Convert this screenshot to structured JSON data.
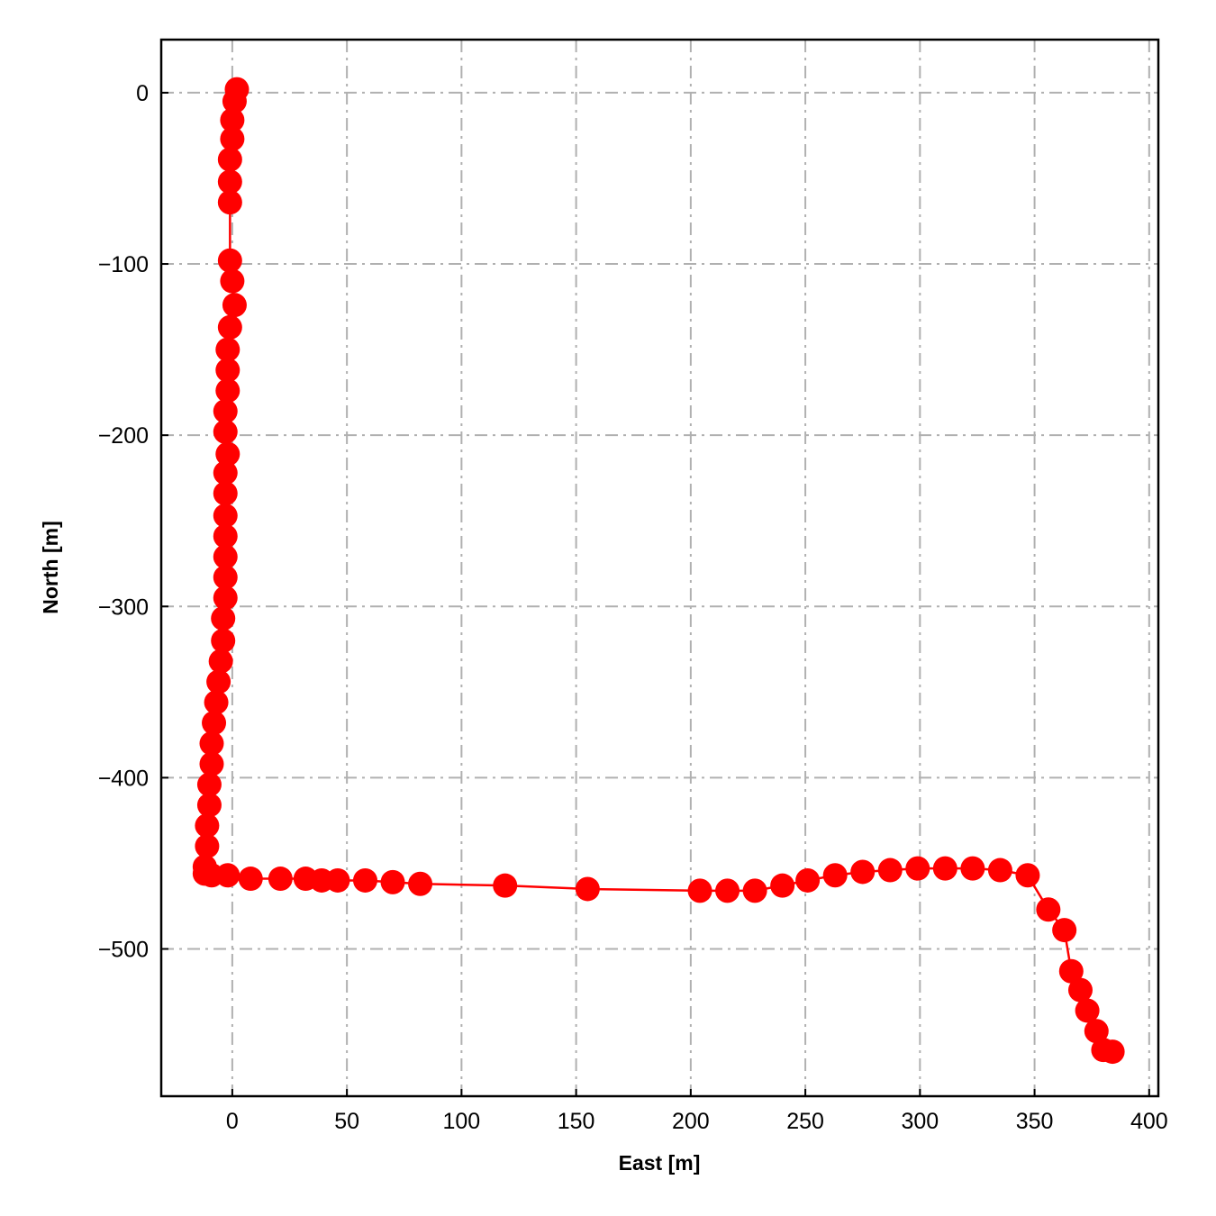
{
  "chart_data": {
    "type": "line",
    "xlabel": "East [m]",
    "ylabel": "North [m]",
    "xlim": [
      -31,
      404
    ],
    "ylim": [
      -586,
      31
    ],
    "xticks": [
      0,
      50,
      100,
      150,
      200,
      250,
      300,
      350,
      400
    ],
    "yticks": [
      0,
      -100,
      -200,
      -300,
      -400,
      -500
    ],
    "xtick_labels": [
      "0",
      "50",
      "100",
      "150",
      "200",
      "250",
      "300",
      "350",
      "400"
    ],
    "ytick_labels": [
      "0",
      "−100",
      "−200",
      "−300",
      "−400",
      "−500"
    ],
    "grid": true,
    "series": [
      {
        "color": "#ff0000",
        "marker": "circle",
        "x": [
          2,
          1,
          0,
          0,
          -1,
          -1,
          -1,
          -1,
          0,
          1,
          -1,
          -2,
          -2,
          -2,
          -3,
          -3,
          -2,
          -3,
          -3,
          -3,
          -3,
          -3,
          -3,
          -3,
          -4,
          -4,
          -5,
          -6,
          -7,
          -8,
          -9,
          -9,
          -10,
          -10,
          -11,
          -11,
          -12,
          -12,
          -9,
          -2,
          8,
          21,
          32,
          39,
          46,
          58,
          70,
          82,
          119,
          155,
          204,
          216,
          228,
          240,
          251,
          263,
          275,
          287,
          299,
          311,
          323,
          335,
          347,
          356,
          363,
          366,
          370,
          373,
          377,
          380,
          384
        ],
        "y": [
          2,
          -5,
          -16,
          -27,
          -39,
          -52,
          -64,
          -98,
          -110,
          -124,
          -137,
          -150,
          -162,
          -174,
          -186,
          -198,
          -211,
          -222,
          -234,
          -247,
          -259,
          -271,
          -283,
          -295,
          -307,
          -320,
          -332,
          -344,
          -356,
          -368,
          -380,
          -392,
          -404,
          -416,
          -428,
          -440,
          -452,
          -456,
          -457,
          -457,
          -459,
          -459,
          -459,
          -460,
          -460,
          -460,
          -461,
          -462,
          -463,
          -465,
          -466,
          -466,
          -466,
          -463,
          -460,
          -457,
          -455,
          -454,
          -453,
          -453,
          -453,
          -454,
          -457,
          -477,
          -489,
          -513,
          -524,
          -536,
          -548,
          -559,
          -560
        ]
      }
    ]
  }
}
